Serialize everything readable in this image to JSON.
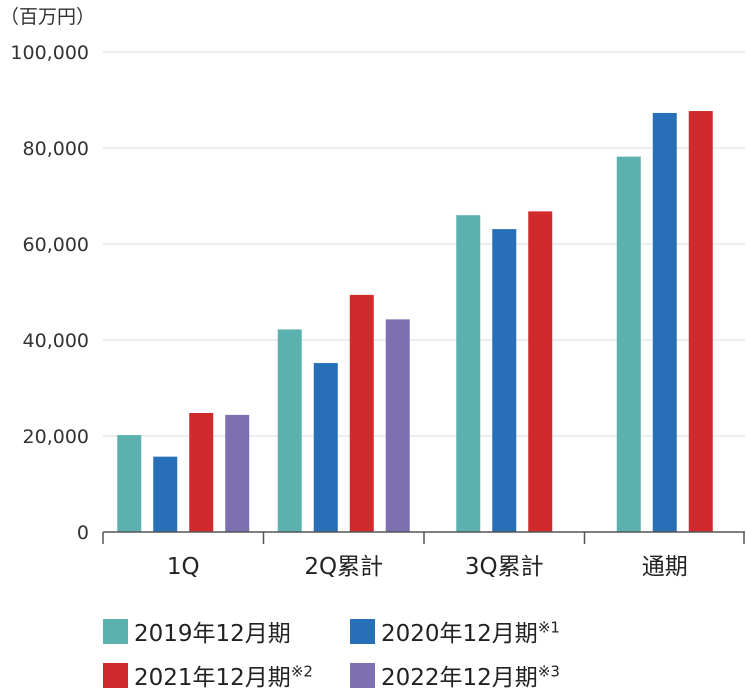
{
  "unit_label": "（百万円）",
  "chart_data": {
    "type": "bar",
    "categories": [
      "1Q",
      "2Q累計",
      "3Q累計",
      "通期"
    ],
    "yticks": [
      "0",
      "20,000",
      "40,000",
      "60,000",
      "80,000",
      "100,000"
    ],
    "ylim": [
      0,
      100000
    ],
    "grid": true,
    "legend_position": "bottom",
    "series": [
      {
        "name": "2019年12月期",
        "note": "",
        "color": "#5bb1ad",
        "values": [
          20200,
          42200,
          66000,
          78200
        ]
      },
      {
        "name": "2020年12月期",
        "note": "※1",
        "color": "#2770b8",
        "values": [
          15700,
          35200,
          63100,
          87300
        ]
      },
      {
        "name": "2021年12月期",
        "note": "※2",
        "color": "#d12a2c",
        "values": [
          24800,
          49400,
          66800,
          87700
        ]
      },
      {
        "name": "2022年12月期",
        "note": "※3",
        "color": "#7e6fb0",
        "values": [
          24400,
          44300,
          null,
          null
        ]
      }
    ]
  }
}
